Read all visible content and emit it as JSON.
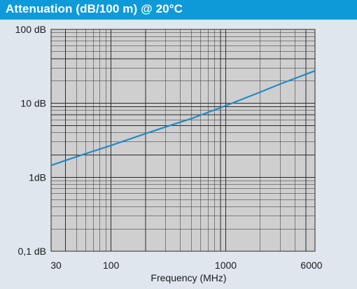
{
  "header": {
    "title": "Attenuation (dB/100 m) @ 20°C"
  },
  "colors": {
    "header_bg": "#0e9ad8",
    "plot_bg": "#cfcfd0",
    "panel_bg": "#dfe6ee",
    "grid": "#2b2b2b",
    "series": "#2389c8"
  },
  "chart_data": {
    "type": "line",
    "title": "Attenuation (dB/100 m) @ 20°C",
    "xlabel": "Frequency (MHz)",
    "ylabel": "",
    "xscale": "log",
    "yscale": "log",
    "xlim": [
      30,
      6000
    ],
    "ylim": [
      0.1,
      100
    ],
    "x_tick_labels": [
      {
        "value": 30,
        "label": "30"
      },
      {
        "value": 100,
        "label": "100"
      },
      {
        "value": 1000,
        "label": "1000"
      },
      {
        "value": 6000,
        "label": "6000"
      }
    ],
    "y_tick_labels": [
      {
        "value": 100,
        "label": "100 dB"
      },
      {
        "value": 10,
        "label": "10 dB"
      },
      {
        "value": 1,
        "label": "1dB"
      },
      {
        "value": 0.1,
        "label": "0,1 dB"
      }
    ],
    "grid": true,
    "series": [
      {
        "name": "",
        "x": [
          30,
          50,
          100,
          200,
          300,
          500,
          1000,
          2000,
          3000,
          6000
        ],
        "y": [
          1.45,
          1.9,
          2.7,
          3.9,
          4.8,
          6.2,
          9.3,
          14.2,
          18.3,
          27.5
        ]
      }
    ]
  }
}
